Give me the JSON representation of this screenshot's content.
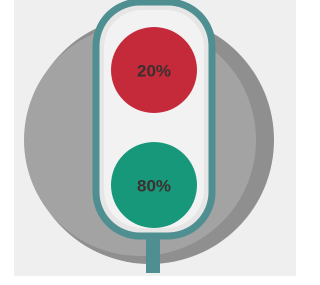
{
  "lights": [
    {
      "label": "20%"
    },
    {
      "label": "80%"
    }
  ]
}
